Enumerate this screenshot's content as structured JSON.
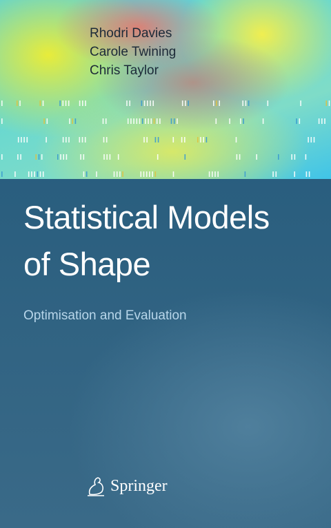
{
  "cover": {
    "authors": [
      "Rhodri Davies",
      "Carole Twining",
      "Chris Taylor"
    ],
    "title_lines": [
      "Statistical Models",
      "of Shape"
    ],
    "subtitle": "Optimisation and Evaluation",
    "publisher": "Springer"
  }
}
